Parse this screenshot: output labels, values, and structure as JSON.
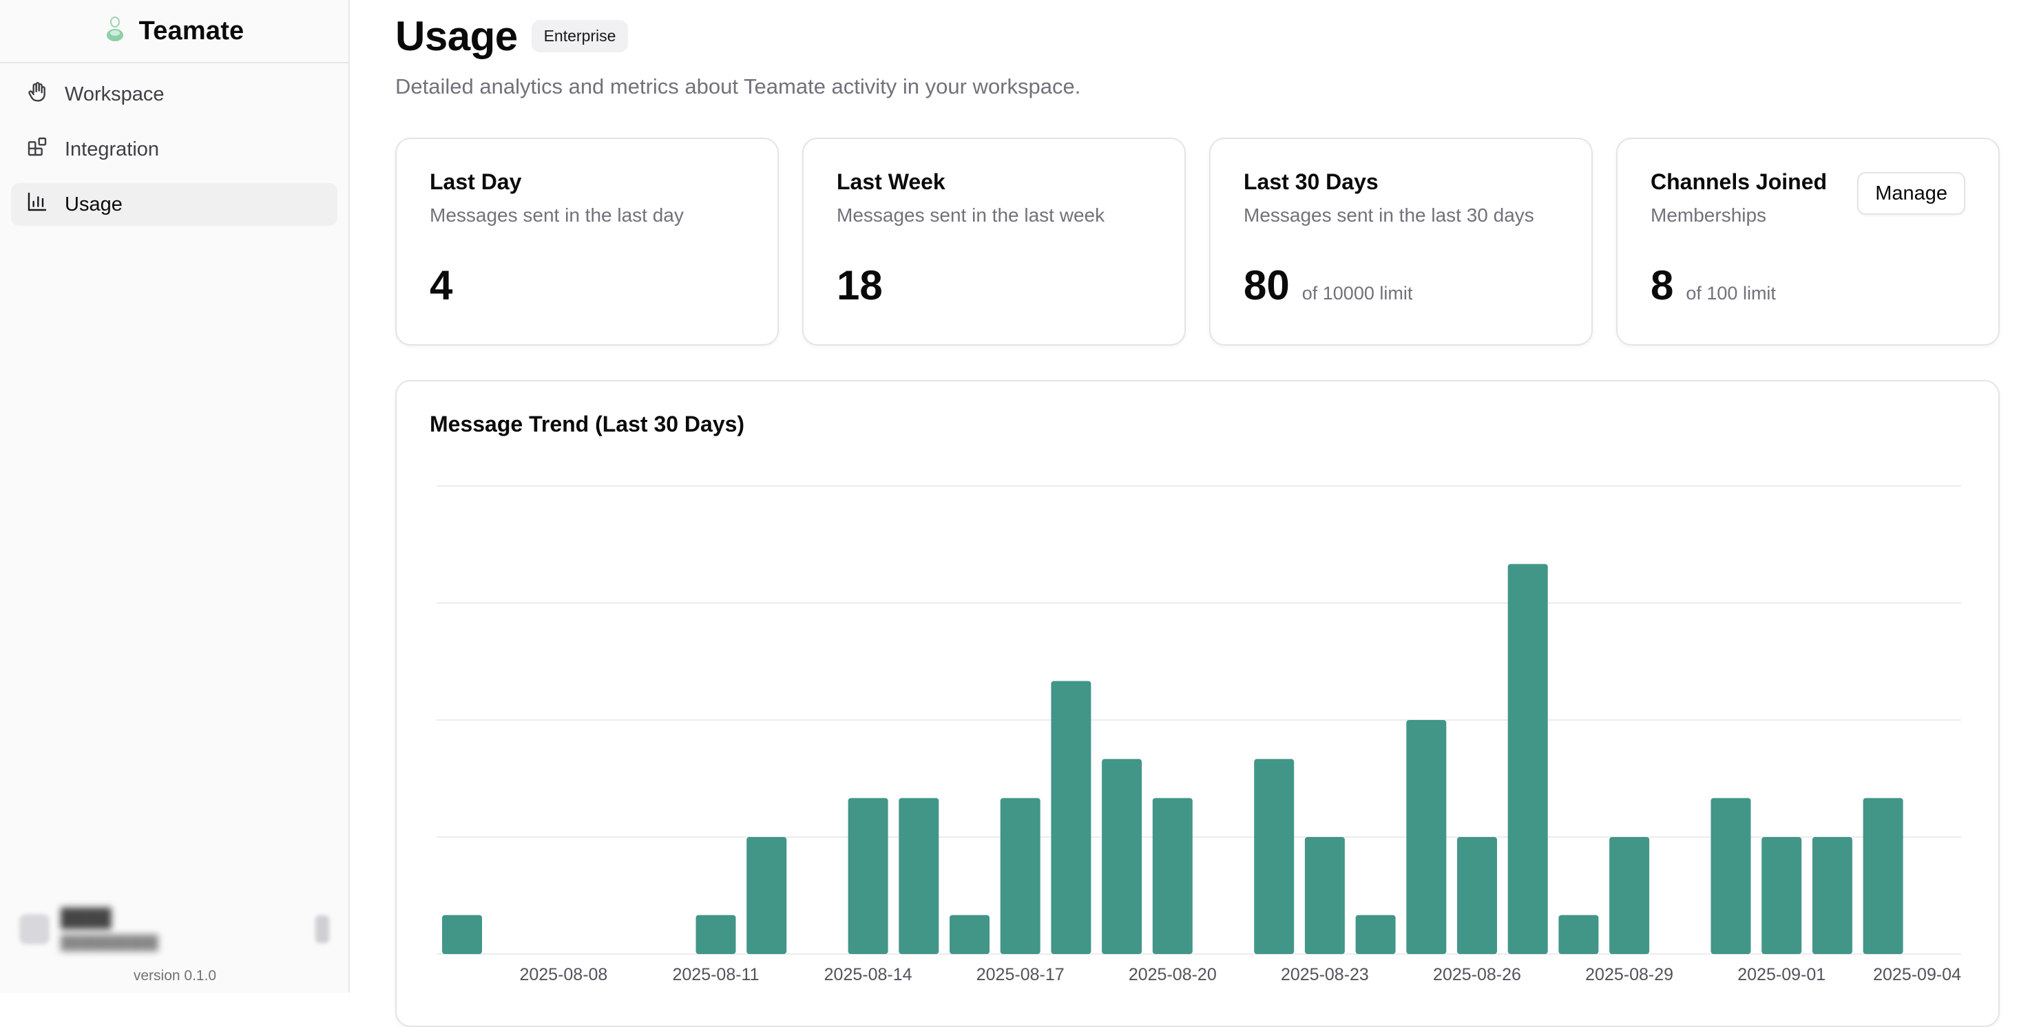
{
  "app": {
    "name": "Teamate",
    "version": "version 0.1.0"
  },
  "sidebar": {
    "items": [
      {
        "label": "Workspace",
        "icon": "hand-icon",
        "active": false
      },
      {
        "label": "Integration",
        "icon": "blocks-icon",
        "active": false
      },
      {
        "label": "Usage",
        "icon": "bar-chart-icon",
        "active": true
      }
    ]
  },
  "header": {
    "title": "Usage",
    "plan_badge": "Enterprise",
    "subtitle": "Detailed analytics and metrics about Teamate activity in your workspace."
  },
  "cards": [
    {
      "title": "Last Day",
      "description": "Messages sent in the last day",
      "value": "4",
      "limit": ""
    },
    {
      "title": "Last Week",
      "description": "Messages sent in the last week",
      "value": "18",
      "limit": ""
    },
    {
      "title": "Last 30 Days",
      "description": "Messages sent in the last 30 days",
      "value": "80",
      "limit": "of 10000 limit"
    },
    {
      "title": "Channels Joined",
      "description": "Memberships",
      "value": "8",
      "limit": "of 100 limit",
      "action": "Manage"
    }
  ],
  "chart_title": "Message Trend (Last 30 Days)",
  "colors": {
    "bar": "#419688",
    "accent_logo": "#7cc59a"
  },
  "chart_data": {
    "type": "bar",
    "categories": [
      "2025-08-06",
      "2025-08-07",
      "2025-08-08",
      "2025-08-09",
      "2025-08-10",
      "2025-08-11",
      "2025-08-12",
      "2025-08-13",
      "2025-08-14",
      "2025-08-15",
      "2025-08-16",
      "2025-08-17",
      "2025-08-18",
      "2025-08-19",
      "2025-08-20",
      "2025-08-21",
      "2025-08-22",
      "2025-08-23",
      "2025-08-24",
      "2025-08-25",
      "2025-08-26",
      "2025-08-27",
      "2025-08-28",
      "2025-08-29",
      "2025-08-30",
      "2025-08-31",
      "2025-09-01",
      "2025-09-02",
      "2025-09-03",
      "2025-09-04"
    ],
    "values": [
      1,
      0,
      0,
      0,
      0,
      1,
      3,
      0,
      4,
      4,
      1,
      4,
      7,
      5,
      4,
      0,
      5,
      3,
      1,
      6,
      3,
      10,
      1,
      3,
      0,
      4,
      3,
      3,
      4,
      0
    ],
    "tick_labels": [
      "2025-08-08",
      "2025-08-11",
      "2025-08-14",
      "2025-08-17",
      "2025-08-20",
      "2025-08-23",
      "2025-08-26",
      "2025-08-29",
      "2025-09-01",
      "2025-09-04"
    ],
    "ylim": [
      0,
      12
    ],
    "grid": true
  }
}
